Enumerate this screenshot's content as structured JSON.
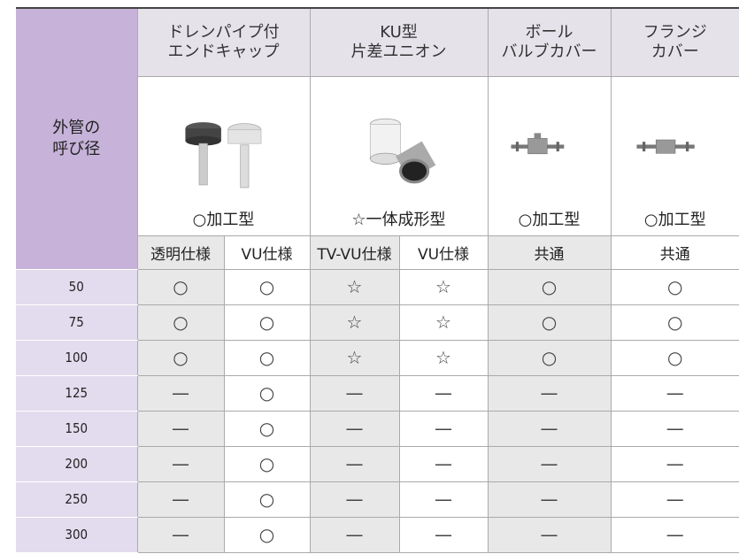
{
  "table": {
    "corner": [
      "外管の",
      "呼び径"
    ],
    "products": [
      {
        "name": [
          "ドレンパイプ付",
          "エンドキャップ"
        ],
        "method": "○加工型",
        "variants": [
          "透明仕様",
          "VU仕様"
        ]
      },
      {
        "name": [
          "KU型",
          "片差ユニオン"
        ],
        "method": "☆一体成形型",
        "variants": [
          "TV-VU仕様",
          "VU仕様"
        ]
      },
      {
        "name": [
          "ボール",
          "バルブカバー"
        ],
        "method": "○加工型",
        "variants": [
          "共通"
        ]
      },
      {
        "name": [
          "フランジ",
          "カバー"
        ],
        "method": "○加工型",
        "variants": [
          "共通"
        ]
      }
    ],
    "rows": [
      [
        "50",
        "○",
        "○",
        "☆",
        "☆",
        "○",
        "○"
      ],
      [
        "75",
        "○",
        "○",
        "☆",
        "☆",
        "○",
        "○"
      ],
      [
        "100",
        "○",
        "○",
        "☆",
        "☆",
        "○",
        "○"
      ],
      [
        "125",
        "—",
        "○",
        "—",
        "—",
        "—",
        "—"
      ],
      [
        "150",
        "—",
        "○",
        "—",
        "—",
        "—",
        "—"
      ],
      [
        "200",
        "—",
        "○",
        "—",
        "—",
        "—",
        "—"
      ],
      [
        "250",
        "—",
        "○",
        "—",
        "—",
        "—",
        "—"
      ],
      [
        "300",
        "—",
        "○",
        "—",
        "—",
        "—",
        "—"
      ]
    ]
  }
}
